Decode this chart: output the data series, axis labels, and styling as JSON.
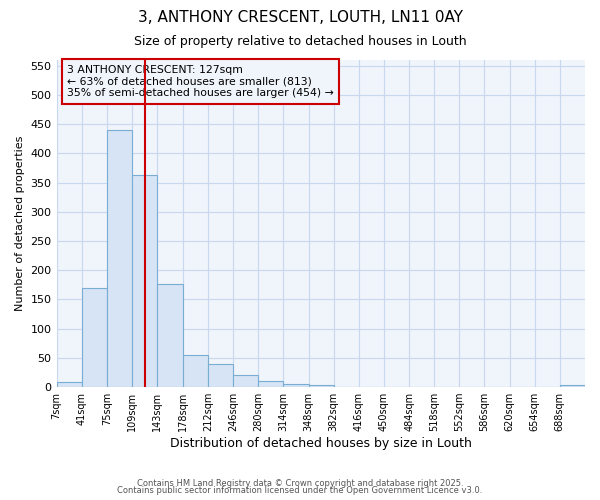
{
  "title1": "3, ANTHONY CRESCENT, LOUTH, LN11 0AY",
  "title2": "Size of property relative to detached houses in Louth",
  "xlabel": "Distribution of detached houses by size in Louth",
  "ylabel": "Number of detached properties",
  "bar_edges": [
    7,
    41,
    75,
    109,
    143,
    178,
    212,
    246,
    280,
    314,
    348,
    382,
    416,
    450,
    484,
    518,
    552,
    586,
    620,
    654,
    688,
    722
  ],
  "bar_heights": [
    8,
    170,
    440,
    363,
    176,
    55,
    40,
    21,
    10,
    5,
    4,
    0,
    0,
    0,
    0,
    0,
    0,
    0,
    0,
    0,
    4
  ],
  "bar_color": "#d6e4f5",
  "bar_edge_color": "#7aadd4",
  "property_size": 127,
  "vline_color": "#cc0000",
  "annotation_text": "3 ANTHONY CRESCENT: 127sqm\n← 63% of detached houses are smaller (813)\n35% of semi-detached houses are larger (454) →",
  "annotation_box_color": "#cc0000",
  "ylim": [
    0,
    560
  ],
  "yticks": [
    0,
    50,
    100,
    150,
    200,
    250,
    300,
    350,
    400,
    450,
    500,
    550
  ],
  "fig_bg_color": "#ffffff",
  "plot_bg_color": "#f0f4fb",
  "grid_color": "#c8d8ee",
  "footer1": "Contains HM Land Registry data © Crown copyright and database right 2025.",
  "footer2": "Contains public sector information licensed under the Open Government Licence v3.0.",
  "tick_labels": [
    "7sqm",
    "41sqm",
    "75sqm",
    "109sqm",
    "143sqm",
    "178sqm",
    "212sqm",
    "246sqm",
    "280sqm",
    "314sqm",
    "348sqm",
    "382sqm",
    "416sqm",
    "450sqm",
    "484sqm",
    "518sqm",
    "552sqm",
    "586sqm",
    "620sqm",
    "654sqm",
    "688sqm"
  ]
}
